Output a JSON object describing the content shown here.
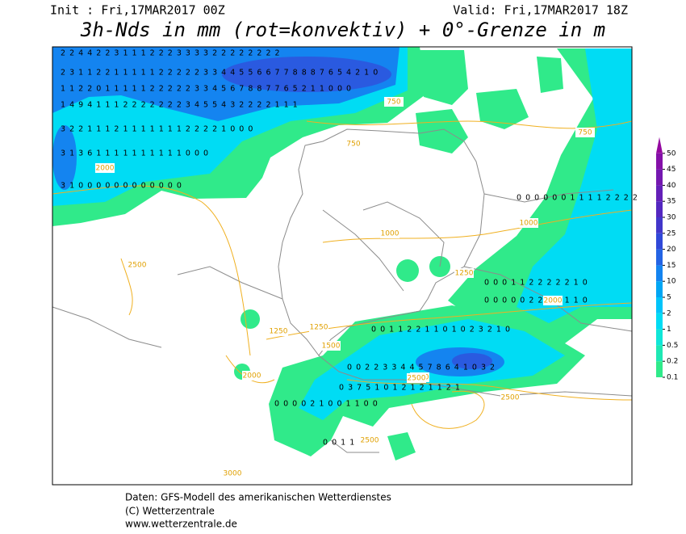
{
  "header": {
    "init": "Init : Fri,17MAR2017 00Z",
    "valid": "Valid: Fri,17MAR2017 18Z",
    "title": "3h-Nds in mm (rot=konvektiv) + 0°-Grenze in m"
  },
  "legend": {
    "levels": [
      0.1,
      0.2,
      0.5,
      1,
      2,
      5,
      10,
      15,
      20,
      25,
      30,
      35,
      40,
      45,
      50
    ],
    "colors": [
      "#30ea8a",
      "#1ee8b4",
      "#10e6d8",
      "#00dcf4",
      "#00c4fa",
      "#00a6f4",
      "#1484f0",
      "#2464e4",
      "#3048d8",
      "#4236ca",
      "#5428c0",
      "#6420b8",
      "#7418b0",
      "#8410a8",
      "#9408a0"
    ]
  },
  "map": {
    "contour_labels": [
      "750",
      "750",
      "750",
      "1000",
      "1000",
      "1250",
      "1250",
      "1250",
      "1500",
      "2000",
      "2000",
      "2000",
      "2000",
      "2500",
      "2500",
      "2500",
      "2500",
      "3000"
    ],
    "precip_rows": [
      "2 2 4 4 2 2 3 1 1 1 2 2 2 3 3 3 3 2 2 2 2 2 2 2 2",
      "2 3 1 1 2 2 1 1 1 1 1 2 2 2 2 2 3 3 4 4 5 5 6 6 7 7 8 8 8 7 6 5 4 2 1 0",
      "1 1 2 2 0 1 1 1 1 1 2 2 2 2 2 3 3 4 5 6 7 8 8 7 7 6 5 2 1 1 0 0 0",
      "1 4 9 4 1 1 1 2 2 2 2 2 2 2 3 4 5 5 4 3 2 2 2 2 1 1 1",
      "3 2 2 1 1 1 2 1 1 1 1 1 1 1 2 2 2 2 1 0 0 0",
      "3 1 3 6 1 1 1 1 1 1 1 1 1 1 0 0 0",
      "3 1 0 0 0 0 0 0 0 0 0 0 0 0",
      "0 0 0 0 0 0 1 1 1 1 2 2 2 2",
      "0 0 0 1 1 2 2 2 2 2 1 0",
      "0 0 0 0 0 2 2 2 1 1 1 0",
      "0 0 1 1 2 2 1 1 0 1 0 2 3 2 1 0",
      "0 0 2 2 3 3 4 4 5 7 8 6 4 1 0 3 2",
      "0 3 7 5 1 0 1 2 1 2 1 1 2 1",
      "0 0 0 0 2 1 0 0 1 1 0 0",
      "0 0 1 1"
    ]
  },
  "footer": {
    "source": "Daten: GFS-Modell des amerikanischen Wetterdienstes",
    "copyright": "(C) Wetterzentrale",
    "url": "www.wetterzentrale.de"
  }
}
